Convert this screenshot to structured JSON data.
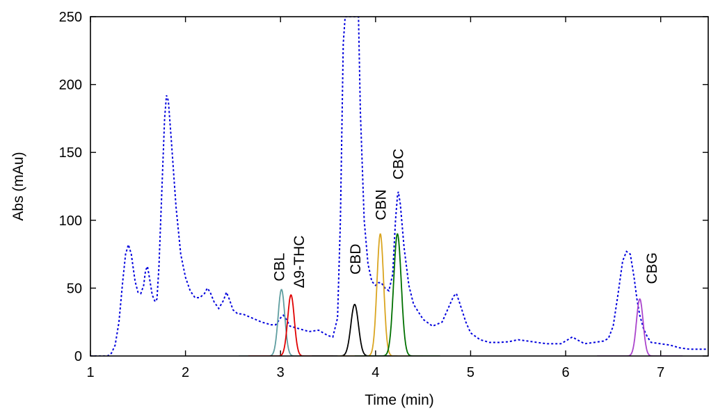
{
  "chart_data": {
    "type": "line",
    "title": "",
    "xlabel": "Time (min)",
    "ylabel": "Abs (mAu)",
    "xlim": [
      1,
      7.5
    ],
    "ylim": [
      0,
      250
    ],
    "x_ticks": [
      1,
      2,
      3,
      4,
      5,
      6,
      7
    ],
    "y_ticks": [
      0,
      50,
      100,
      150,
      200,
      250
    ],
    "grid": false,
    "legend": "none",
    "trace": {
      "style": "dotted",
      "color": "#0000dd",
      "points": [
        [
          1.0,
          0
        ],
        [
          1.18,
          0
        ],
        [
          1.22,
          2
        ],
        [
          1.26,
          8
        ],
        [
          1.3,
          25
        ],
        [
          1.34,
          55
        ],
        [
          1.37,
          75
        ],
        [
          1.4,
          82
        ],
        [
          1.43,
          75
        ],
        [
          1.47,
          55
        ],
        [
          1.5,
          47
        ],
        [
          1.53,
          46
        ],
        [
          1.56,
          52
        ],
        [
          1.58,
          63
        ],
        [
          1.6,
          66
        ],
        [
          1.62,
          58
        ],
        [
          1.65,
          45
        ],
        [
          1.68,
          40
        ],
        [
          1.7,
          42
        ],
        [
          1.72,
          65
        ],
        [
          1.75,
          120
        ],
        [
          1.78,
          175
        ],
        [
          1.8,
          192
        ],
        [
          1.82,
          188
        ],
        [
          1.85,
          160
        ],
        [
          1.9,
          110
        ],
        [
          1.95,
          75
        ],
        [
          2.0,
          58
        ],
        [
          2.05,
          48
        ],
        [
          2.1,
          43
        ],
        [
          2.15,
          43
        ],
        [
          2.2,
          46
        ],
        [
          2.23,
          50
        ],
        [
          2.26,
          47
        ],
        [
          2.3,
          40
        ],
        [
          2.35,
          35
        ],
        [
          2.4,
          41
        ],
        [
          2.43,
          47
        ],
        [
          2.46,
          42
        ],
        [
          2.5,
          34
        ],
        [
          2.55,
          31
        ],
        [
          2.6,
          31
        ],
        [
          2.7,
          28
        ],
        [
          2.8,
          25
        ],
        [
          2.9,
          23
        ],
        [
          2.95,
          23
        ],
        [
          3.0,
          28
        ],
        [
          3.03,
          30
        ],
        [
          3.06,
          27
        ],
        [
          3.1,
          22
        ],
        [
          3.2,
          20
        ],
        [
          3.3,
          18
        ],
        [
          3.4,
          19
        ],
        [
          3.5,
          15
        ],
        [
          3.55,
          14
        ],
        [
          3.6,
          28
        ],
        [
          3.63,
          100
        ],
        [
          3.66,
          230
        ],
        [
          3.68,
          250
        ],
        [
          3.82,
          250
        ],
        [
          3.84,
          180
        ],
        [
          3.88,
          100
        ],
        [
          3.92,
          68
        ],
        [
          3.96,
          55
        ],
        [
          4.0,
          52
        ],
        [
          4.03,
          54
        ],
        [
          4.06,
          54
        ],
        [
          4.1,
          50
        ],
        [
          4.14,
          48
        ],
        [
          4.18,
          60
        ],
        [
          4.21,
          100
        ],
        [
          4.23,
          118
        ],
        [
          4.24,
          121
        ],
        [
          4.26,
          112
        ],
        [
          4.3,
          80
        ],
        [
          4.35,
          52
        ],
        [
          4.4,
          38
        ],
        [
          4.5,
          27
        ],
        [
          4.6,
          22
        ],
        [
          4.7,
          25
        ],
        [
          4.77,
          36
        ],
        [
          4.82,
          44
        ],
        [
          4.85,
          46
        ],
        [
          4.88,
          40
        ],
        [
          4.95,
          25
        ],
        [
          5.0,
          17
        ],
        [
          5.1,
          12
        ],
        [
          5.2,
          10
        ],
        [
          5.3,
          10
        ],
        [
          5.4,
          10.5
        ],
        [
          5.5,
          12
        ],
        [
          5.6,
          11
        ],
        [
          5.7,
          10
        ],
        [
          5.8,
          9
        ],
        [
          5.95,
          9
        ],
        [
          6.0,
          11
        ],
        [
          6.07,
          14
        ],
        [
          6.12,
          12
        ],
        [
          6.2,
          9
        ],
        [
          6.3,
          10
        ],
        [
          6.4,
          11
        ],
        [
          6.45,
          13
        ],
        [
          6.5,
          22
        ],
        [
          6.55,
          45
        ],
        [
          6.6,
          70
        ],
        [
          6.64,
          77
        ],
        [
          6.68,
          75
        ],
        [
          6.72,
          58
        ],
        [
          6.75,
          42
        ],
        [
          6.78,
          30
        ],
        [
          6.82,
          20
        ],
        [
          6.86,
          14
        ],
        [
          6.9,
          10
        ],
        [
          7.0,
          9
        ],
        [
          7.1,
          8
        ],
        [
          7.2,
          6
        ],
        [
          7.3,
          5
        ],
        [
          7.4,
          5
        ],
        [
          7.5,
          5
        ]
      ]
    },
    "peaks": [
      {
        "name": "CBL",
        "color": "#5f9ea0",
        "center": 3.01,
        "height": 49,
        "width": 0.035,
        "label_x": 2.98,
        "label_y": 55
      },
      {
        "name": "Δ9-THC",
        "color": "#e00000",
        "center": 3.11,
        "height": 45,
        "width": 0.035,
        "label_x": 3.19,
        "label_y": 50
      },
      {
        "name": "CBD",
        "color": "#000000",
        "center": 3.78,
        "height": 38,
        "width": 0.04,
        "label_x": 3.78,
        "label_y": 60
      },
      {
        "name": "CBN",
        "color": "#daa520",
        "center": 4.05,
        "height": 90,
        "width": 0.035,
        "label_x": 4.05,
        "label_y": 100
      },
      {
        "name": "CBC",
        "color": "#007000",
        "center": 4.23,
        "height": 90,
        "width": 0.04,
        "label_x": 4.23,
        "label_y": 130
      },
      {
        "name": "CBG",
        "color": "#aa44cc",
        "center": 6.78,
        "height": 42,
        "width": 0.035,
        "label_x": 6.9,
        "label_y": 53
      }
    ]
  }
}
